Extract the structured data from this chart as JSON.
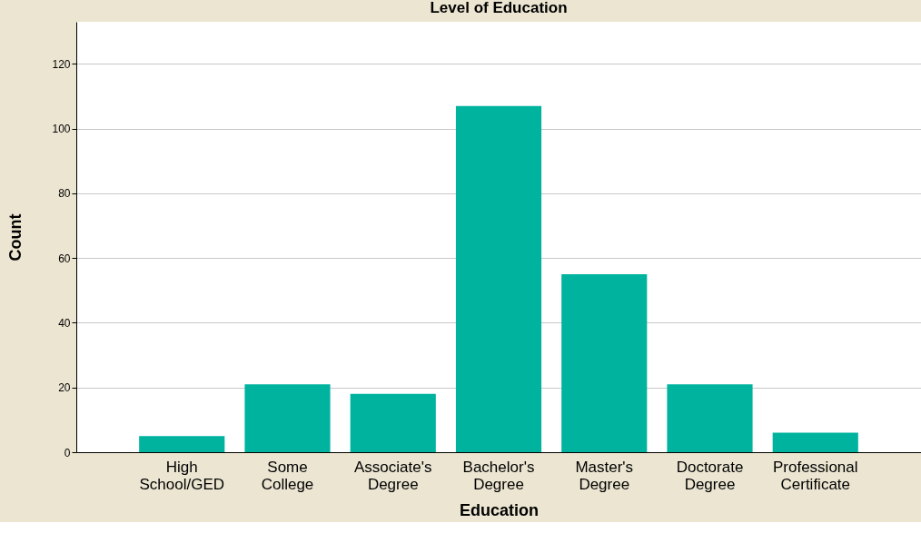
{
  "chart_data": {
    "type": "bar",
    "title": "Level of Education",
    "xlabel": "Education",
    "ylabel": "Count",
    "categories": [
      "High School/GED",
      "Some College",
      "Associate's Degree",
      "Bachelor's Degree",
      "Master's Degree",
      "Doctorate Degree",
      "Professional Certificate"
    ],
    "values": [
      5,
      21,
      18,
      107,
      55,
      21,
      6
    ],
    "color": "#00b39f",
    "ylim": [
      0,
      133
    ],
    "yticks": [
      0,
      20,
      40,
      60,
      80,
      100,
      120
    ],
    "grid": "y"
  }
}
